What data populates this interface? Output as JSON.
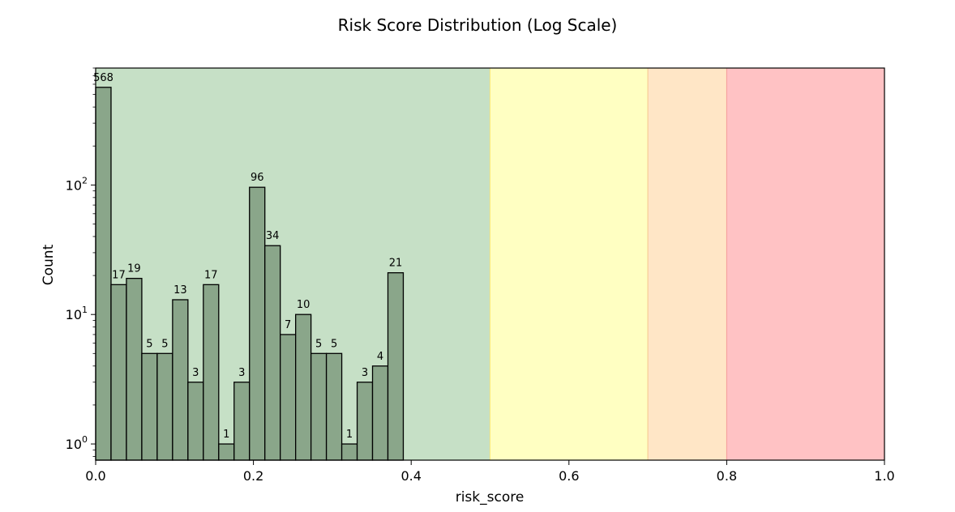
{
  "chart_data": {
    "type": "bar",
    "title": "Risk Score Distribution (Log Scale)",
    "xlabel": "risk_score",
    "ylabel": "Count",
    "xlim": [
      0.0,
      1.0
    ],
    "ylim": [
      0.75,
      800
    ],
    "y_scale": "log",
    "grid": false,
    "x_ticks": [
      0.0,
      0.2,
      0.4,
      0.6,
      0.8,
      1.0
    ],
    "x_tick_labels": [
      "0.0",
      "0.2",
      "0.4",
      "0.6",
      "0.8",
      "1.0"
    ],
    "y_ticks": [
      1,
      10,
      100
    ],
    "y_tick_labels": [
      {
        "base": "10",
        "exp": "0"
      },
      {
        "base": "10",
        "exp": "1"
      },
      {
        "base": "10",
        "exp": "2"
      }
    ],
    "bin_width": 0.0195,
    "bin_starts": [
      0.0,
      0.0195,
      0.039,
      0.0585,
      0.078,
      0.0975,
      0.117,
      0.1365,
      0.156,
      0.1755,
      0.195,
      0.2145,
      0.234,
      0.2535,
      0.273,
      0.2925,
      0.312,
      0.3315,
      0.351,
      0.3705
    ],
    "values": [
      568,
      17,
      19,
      5,
      5,
      13,
      3,
      17,
      1,
      3,
      96,
      34,
      7,
      10,
      5,
      5,
      1,
      3,
      4,
      21
    ],
    "value_labels": [
      "568",
      "17",
      "19",
      "5",
      "5",
      "13",
      "3",
      "17",
      "1",
      "3",
      "96",
      "34",
      "7",
      "10",
      "5",
      "5",
      "1",
      "3",
      "4",
      "21"
    ],
    "bands": [
      {
        "from": 0.0,
        "to": 0.5,
        "color": "#c6e0c6",
        "edge": "#9fd39f"
      },
      {
        "from": 0.5,
        "to": 0.7,
        "color": "#ffffc2",
        "edge": "#ffe87a"
      },
      {
        "from": 0.7,
        "to": 0.8,
        "color": "#ffe6c6",
        "edge": "#f6c68e"
      },
      {
        "from": 0.8,
        "to": 1.0,
        "color": "#ffc2c4",
        "edge": "#f49a9a"
      }
    ],
    "bar_color": "#8aa68a",
    "bar_edge_color": "#000000"
  }
}
